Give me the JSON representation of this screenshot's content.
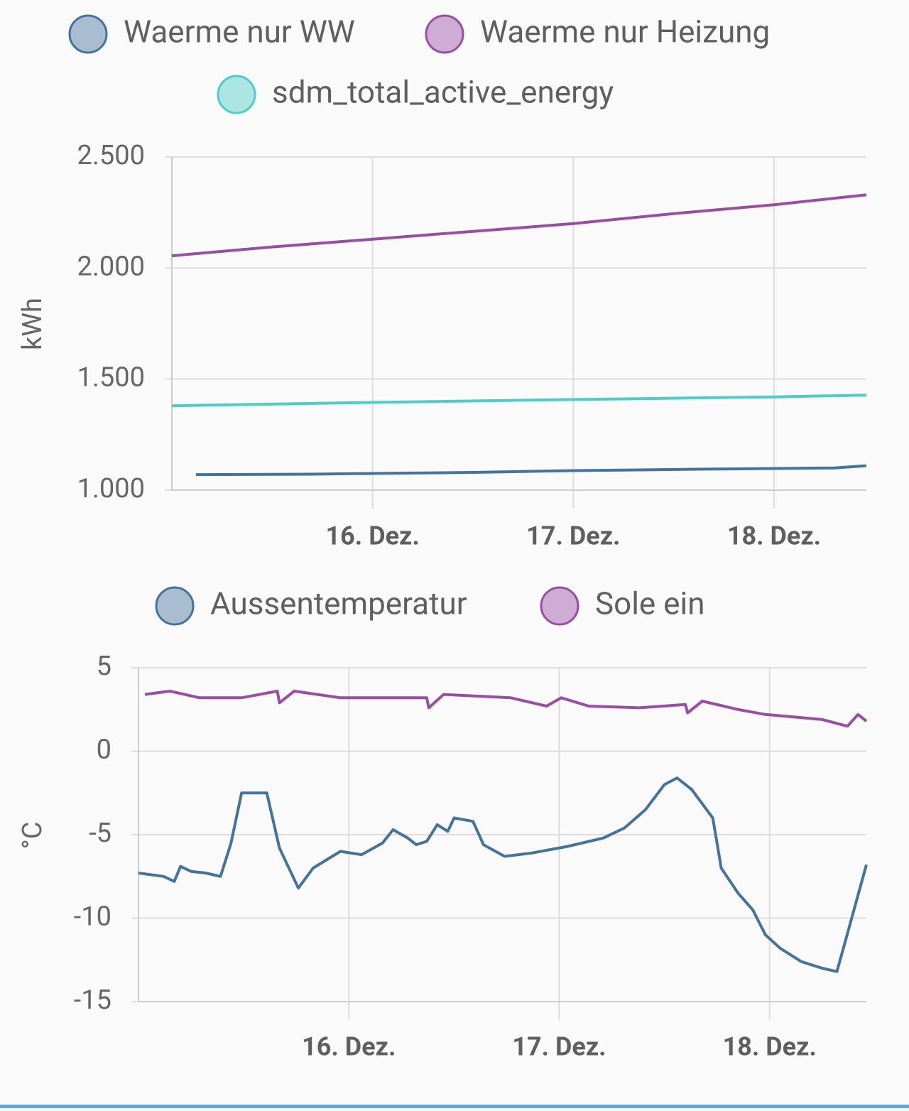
{
  "chart_data": [
    {
      "type": "line",
      "ylabel": "kWh",
      "xlim": [
        15.0,
        18.46
      ],
      "xticks": [
        {
          "value": 16,
          "label": "16. Dez."
        },
        {
          "value": 17,
          "label": "17. Dez."
        },
        {
          "value": 18,
          "label": "18. Dez."
        }
      ],
      "ylim": [
        1000,
        2500
      ],
      "yticks": [
        {
          "value": 1000,
          "label": "1.000"
        },
        {
          "value": 1500,
          "label": "1.500"
        },
        {
          "value": 2000,
          "label": "2.000"
        },
        {
          "value": 2500,
          "label": "2.500"
        }
      ],
      "grid": true,
      "series": [
        {
          "name": "Waerme nur WW",
          "color": "#44739e",
          "x": [
            15.12,
            15.7,
            16.0,
            16.5,
            17.0,
            17.7,
            18.3,
            18.46
          ],
          "values": [
            1070,
            1072,
            1075,
            1080,
            1088,
            1095,
            1100,
            1110
          ]
        },
        {
          "name": "Waerme nur Heizung",
          "color": "#984ea3",
          "x": [
            15.0,
            15.5,
            16.0,
            16.5,
            17.0,
            17.5,
            18.0,
            18.46
          ],
          "values": [
            2055,
            2095,
            2130,
            2165,
            2200,
            2245,
            2285,
            2330
          ]
        },
        {
          "name": "sdm_total_active_energy",
          "color": "#4ecdc4",
          "x": [
            15.0,
            16.0,
            17.0,
            18.0,
            18.46
          ],
          "values": [
            1380,
            1395,
            1408,
            1420,
            1428
          ]
        }
      ]
    },
    {
      "type": "line",
      "ylabel": "°C",
      "xlim": [
        15.0,
        18.46
      ],
      "xticks": [
        {
          "value": 16,
          "label": "16. Dez."
        },
        {
          "value": 17,
          "label": "17. Dez."
        },
        {
          "value": 18,
          "label": "18. Dez."
        }
      ],
      "ylim": [
        -15,
        5
      ],
      "yticks": [
        -15,
        -10,
        -5,
        0,
        5
      ],
      "grid": true,
      "series": [
        {
          "name": "Aussentemperatur",
          "color": "#44739e",
          "x": [
            15.0,
            15.12,
            15.17,
            15.2,
            15.25,
            15.32,
            15.39,
            15.44,
            15.49,
            15.61,
            15.67,
            15.76,
            15.83,
            15.96,
            16.06,
            16.16,
            16.21,
            16.28,
            16.32,
            16.37,
            16.42,
            16.47,
            16.5,
            16.59,
            16.64,
            16.74,
            16.87,
            17.04,
            17.21,
            17.31,
            17.41,
            17.5,
            17.56,
            17.63,
            17.73,
            17.77,
            17.85,
            17.92,
            17.98,
            18.05,
            18.15,
            18.25,
            18.32,
            18.39,
            18.46
          ],
          "values": [
            -7.3,
            -7.5,
            -7.8,
            -6.9,
            -7.2,
            -7.3,
            -7.5,
            -5.5,
            -2.5,
            -2.5,
            -5.8,
            -8.2,
            -7.0,
            -6.0,
            -6.2,
            -5.5,
            -4.7,
            -5.2,
            -5.6,
            -5.4,
            -4.4,
            -4.8,
            -4.0,
            -4.2,
            -5.6,
            -6.3,
            -6.1,
            -5.7,
            -5.2,
            -4.6,
            -3.5,
            -2.0,
            -1.6,
            -2.3,
            -4.0,
            -7.0,
            -8.5,
            -9.5,
            -11.0,
            -11.8,
            -12.6,
            -13.0,
            -13.2,
            -10.0,
            -6.8
          ]
        },
        {
          "name": "Sole ein",
          "color": "#984ea3",
          "x": [
            15.03,
            15.15,
            15.29,
            15.49,
            15.66,
            15.67,
            15.74,
            15.96,
            16.37,
            16.38,
            16.45,
            16.77,
            16.94,
            17.01,
            17.14,
            17.38,
            17.6,
            17.61,
            17.68,
            17.85,
            17.98,
            18.25,
            18.37,
            18.42,
            18.46
          ],
          "values": [
            3.4,
            3.6,
            3.2,
            3.2,
            3.6,
            2.9,
            3.6,
            3.2,
            3.2,
            2.6,
            3.4,
            3.2,
            2.7,
            3.2,
            2.7,
            2.6,
            2.8,
            2.3,
            3.0,
            2.5,
            2.2,
            1.9,
            1.5,
            2.2,
            1.8
          ]
        }
      ]
    }
  ]
}
